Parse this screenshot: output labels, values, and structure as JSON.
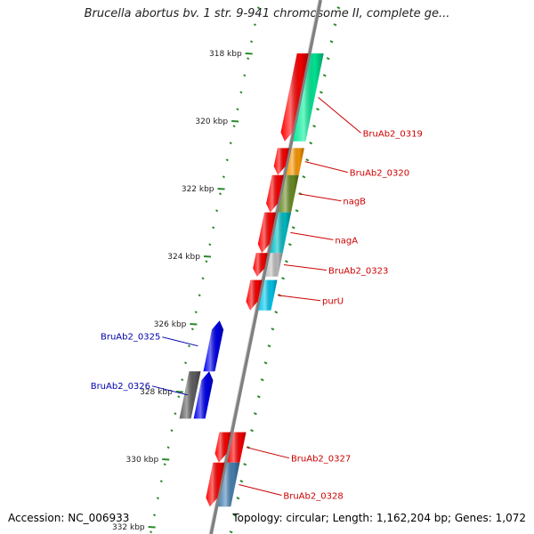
{
  "header": {
    "title": "Brucella abortus bv. 1 str. 9-941 chromosome II, complete ge..."
  },
  "footer": {
    "accession": "Accession: NC_006933",
    "summary": "Topology: circular; Length: 1,162,204 bp; Genes: 1,072"
  },
  "axis": {
    "ticks": [
      {
        "label": "318 kbp",
        "value": 318
      },
      {
        "label": "320 kbp",
        "value": 320
      },
      {
        "label": "322 kbp",
        "value": 322
      },
      {
        "label": "324 kbp",
        "value": 324
      },
      {
        "label": "326 kbp",
        "value": 326
      },
      {
        "label": "328 kbp",
        "value": 328
      },
      {
        "label": "330 kbp",
        "value": 330
      },
      {
        "label": "332 kbp",
        "value": 332
      }
    ]
  },
  "colors": {
    "cds": "#ff0000",
    "forward_gene_label": "#cc0000",
    "reverse_gene_label": "#0000aa",
    "reverse_cds": "#0000ee",
    "backbone": "#808080",
    "tick_dots": "#2a8a2a"
  },
  "genes": [
    {
      "name": "BruAb2_0319",
      "strand": "+",
      "color": "#00ee99",
      "start_kbp": 318.0,
      "end_kbp": 320.6
    },
    {
      "name": "BruAb2_0320",
      "strand": "+",
      "color": "#ff9900",
      "start_kbp": 320.8,
      "end_kbp": 321.6
    },
    {
      "name": "nagB",
      "strand": "+",
      "color": "#6b8e23",
      "start_kbp": 321.6,
      "end_kbp": 322.7
    },
    {
      "name": "nagA",
      "strand": "+",
      "color": "#00c0c8",
      "start_kbp": 322.7,
      "end_kbp": 323.9
    },
    {
      "name": "BruAb2_0323",
      "strand": "+",
      "color": "#c0c0c0",
      "start_kbp": 323.9,
      "end_kbp": 324.6
    },
    {
      "name": "purU",
      "strand": "+",
      "color": "#00c8f0",
      "start_kbp": 324.7,
      "end_kbp": 325.6
    },
    {
      "name": "BruAb2_0325",
      "strand": "-",
      "color": "#0000ee",
      "start_kbp": 325.9,
      "end_kbp": 327.4
    },
    {
      "name": "BruAb2_0326",
      "strand": "-",
      "color": "#606060",
      "start_kbp": 327.4,
      "end_kbp": 328.8
    },
    {
      "name": "BruAb2_0327",
      "strand": "+",
      "color": "#ff0000",
      "start_kbp": 329.2,
      "end_kbp": 330.1
    },
    {
      "name": "BruAb2_0328",
      "strand": "+",
      "color": "#4682b4",
      "start_kbp": 330.1,
      "end_kbp": 331.4
    }
  ]
}
